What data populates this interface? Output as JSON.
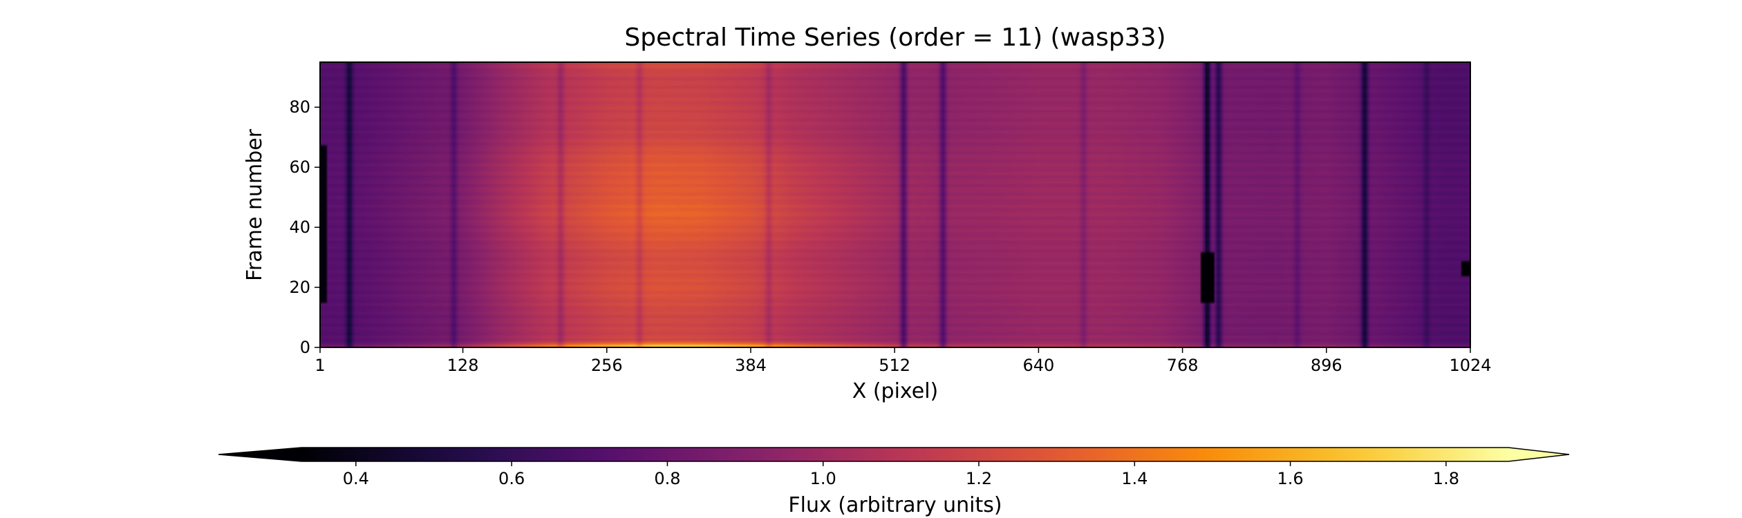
{
  "chart_data": {
    "type": "heatmap",
    "title": "Spectral Time Series (order = 11) (wasp33)",
    "xlabel": "X (pixel)",
    "ylabel": "Frame number",
    "xlim": [
      1,
      1024
    ],
    "ylim": [
      0,
      95
    ],
    "xticks": [
      1,
      128,
      256,
      384,
      512,
      640,
      768,
      896,
      1024
    ],
    "yticks": [
      0,
      20,
      40,
      60,
      80
    ],
    "colormap": "inferno",
    "colorbar": {
      "label": "Flux (arbitrary units)",
      "vmin": 0.33,
      "vmax": 1.88,
      "ticks": [
        0.4,
        0.6,
        0.8,
        1.0,
        1.2,
        1.4,
        1.6,
        1.8
      ],
      "extend": "both",
      "orientation": "horizontal",
      "placement": "bottom"
    },
    "base_flux": 0.92,
    "column_profile": {
      "x": [
        1,
        40,
        80,
        128,
        160,
        200,
        256,
        300,
        340,
        384,
        420,
        460,
        512,
        560,
        600,
        640,
        700,
        750,
        800,
        850,
        896,
        950,
        1000,
        1024
      ],
      "flux": [
        0.72,
        0.74,
        0.8,
        0.86,
        0.98,
        1.1,
        1.2,
        1.24,
        1.23,
        1.18,
        1.1,
        1.05,
        0.98,
        0.95,
        0.96,
        0.98,
        0.98,
        0.95,
        0.85,
        0.84,
        0.86,
        0.78,
        0.7,
        0.7
      ]
    },
    "row_profile": {
      "frame": [
        0,
        1,
        2,
        10,
        20,
        30,
        40,
        45,
        50,
        60,
        65,
        70,
        80,
        90,
        95
      ],
      "factor": [
        1.35,
        1.2,
        0.98,
        0.98,
        1.02,
        1.0,
        1.05,
        1.07,
        1.05,
        1.04,
        1.02,
        0.98,
        0.97,
        0.96,
        1.0
      ]
    },
    "absorption_lines": [
      {
        "x": 27,
        "depth": 0.25
      },
      {
        "x": 120,
        "depth": 0.15
      },
      {
        "x": 215,
        "depth": 0.12
      },
      {
        "x": 285,
        "depth": 0.1
      },
      {
        "x": 400,
        "depth": 0.1
      },
      {
        "x": 520,
        "depth": 0.3
      },
      {
        "x": 555,
        "depth": 0.25
      },
      {
        "x": 680,
        "depth": 0.1
      },
      {
        "x": 790,
        "depth": 0.45
      },
      {
        "x": 800,
        "depth": 0.3
      },
      {
        "x": 870,
        "depth": 0.1
      },
      {
        "x": 930,
        "depth": 0.35
      },
      {
        "x": 985,
        "depth": 0.1
      }
    ],
    "features": [
      {
        "x": 790,
        "frame_min": 15,
        "frame_max": 32,
        "flux": 0.33
      },
      {
        "x": 1,
        "frame_min": 15,
        "frame_max": 67,
        "flux": 0.35
      },
      {
        "x": 1022,
        "frame_min": 24,
        "frame_max": 29,
        "flux": 0.33
      }
    ]
  }
}
